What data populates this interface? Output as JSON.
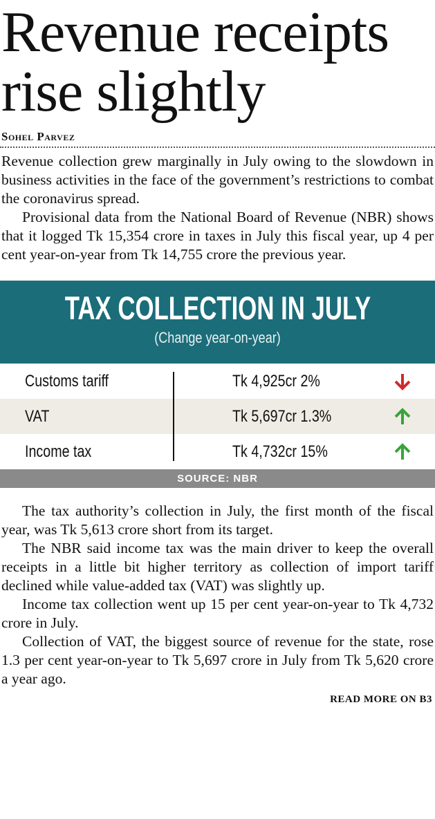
{
  "article": {
    "headline": "Revenue receipts rise slightly",
    "byline": "Sohel Parvez",
    "paragraphs_before": [
      "Revenue collection grew marginally in July owing to the slowdown in business activities in the face of the government’s restrictions to combat the coronavirus spread.",
      "Provisional data from the National Board of Revenue (NBR) shows that it logged Tk 15,354 crore in taxes in July this fiscal year, up 4 per cent year-on-year from Tk 14,755 crore the previous year."
    ],
    "infobox": {
      "title": "TAX COLLECTION IN JULY",
      "subtitle": "(Change year-on-year)",
      "rows": [
        [
          "Customs tariff",
          "Tk 4,925cr",
          "2%"
        ],
        [
          "VAT",
          "Tk 5,697cr",
          "1.3%"
        ],
        [
          "Income tax",
          "Tk 4,732cr",
          "15%"
        ]
      ],
      "source": "SOURCE: NBR"
    },
    "paragraphs_after": [
      "The tax authority’s collection in July, the first month of the fiscal year, was Tk 5,613 crore short from its target.",
      "The NBR said income tax was the main driver to keep the overall receipts in a little bit higher territory as collection of import tariff declined while value-added tax (VAT) was slightly up.",
      "Income tax collection went up 15 per cent year-on-year to Tk 4,732 crore in July.",
      "Collection of VAT, the biggest source of revenue for the state, rose 1.3 per cent year-on-year to Tk 5,697 crore in July from Tk 5,620 crore a year ago."
    ],
    "read_more": "READ MORE ON B3"
  }
}
